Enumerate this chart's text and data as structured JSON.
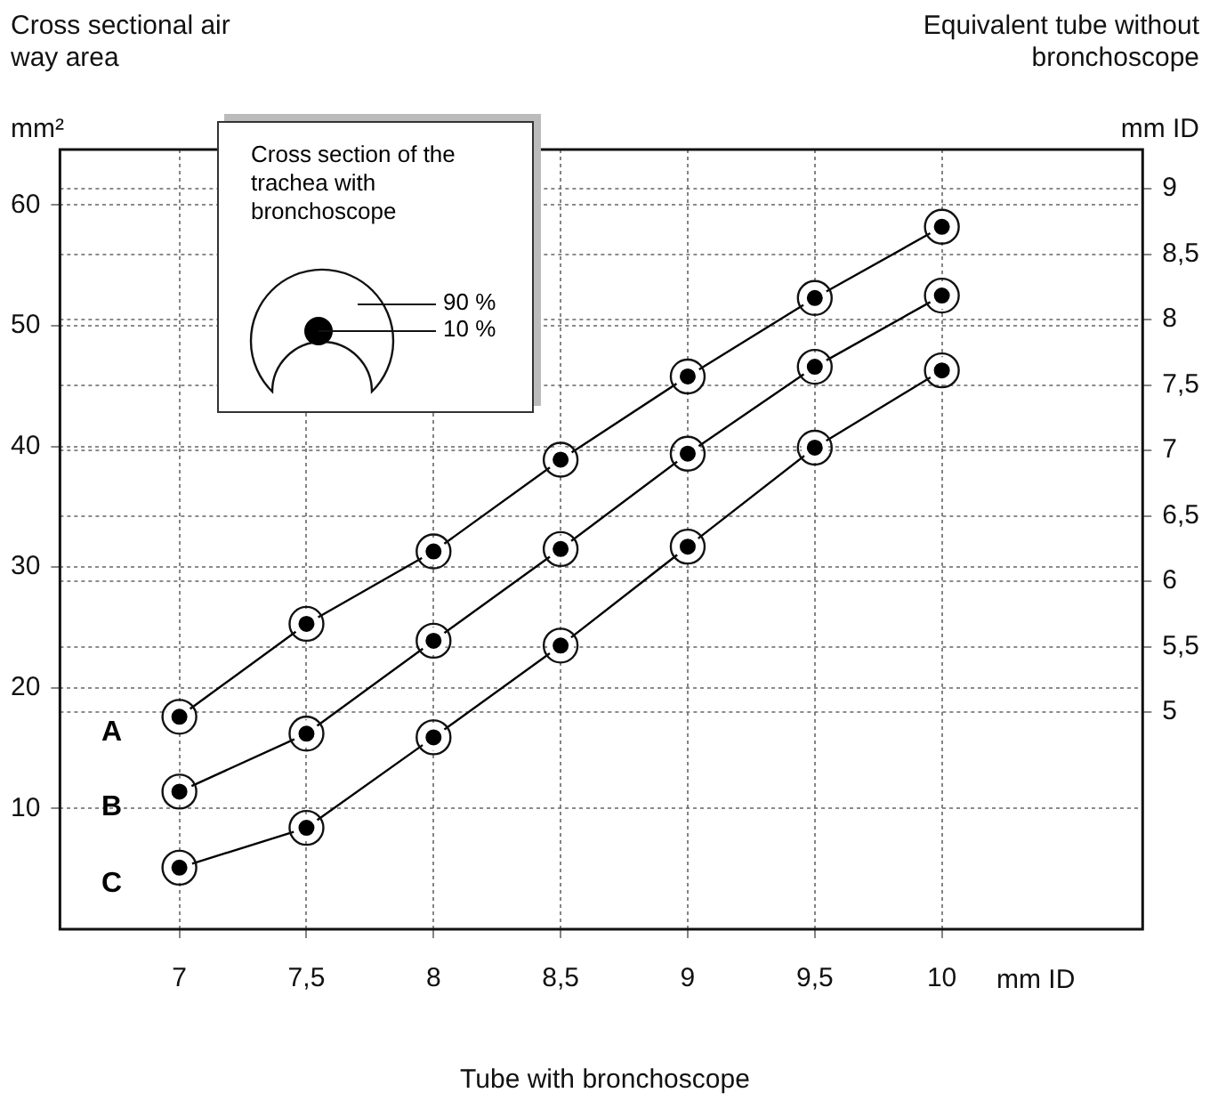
{
  "chart_data": {
    "type": "line",
    "ylabel": "Cross sectional air way area",
    "y2label": "Equivalent tube without bronchoscope",
    "xlabel": "Tube with bronchoscope",
    "annotations": [
      "Cross section of the trachea with bronchoscope",
      "90 %",
      "10 %",
      "mm²",
      "mm ID",
      "mm ID"
    ],
    "x": [
      7,
      7.5,
      8,
      8.5,
      9,
      9.5,
      10
    ],
    "series": [
      {
        "name": "A",
        "color": "#000000",
        "values": [
          17.6,
          25.3,
          31.3,
          38.9,
          45.8,
          52.3,
          58.2
        ]
      },
      {
        "name": "B",
        "color": "#000000",
        "values": [
          11.4,
          16.2,
          23.9,
          31.5,
          39.4,
          46.6,
          52.5
        ]
      },
      {
        "name": "C",
        "color": "#000000",
        "values": [
          5.1,
          8.4,
          15.9,
          23.5,
          31.7,
          39.9,
          46.3
        ]
      }
    ],
    "xlim": [
      6.53,
      10.79
    ],
    "xticks": [
      7,
      {
        "value": 7.5,
        "label": "7,5"
      },
      8,
      {
        "value": 8.5,
        "label": "8,5"
      },
      9,
      {
        "value": 9.5,
        "label": "9,5"
      },
      10
    ],
    "ylim": [
      0,
      64.6
    ],
    "yticks": [
      10,
      20,
      30,
      40,
      50,
      60
    ],
    "y2lim": [
      3.34,
      9.3
    ],
    "y2ticks": [
      5,
      {
        "value": 5.5,
        "label": "5,5"
      },
      6,
      {
        "value": 6.5,
        "label": "6,5"
      },
      7,
      {
        "value": 7.5,
        "label": "7,5"
      },
      8,
      {
        "value": 8.5,
        "label": "8,5"
      },
      9
    ],
    "grid": true,
    "legend": false,
    "marker": "circle",
    "line_style": "solid"
  }
}
